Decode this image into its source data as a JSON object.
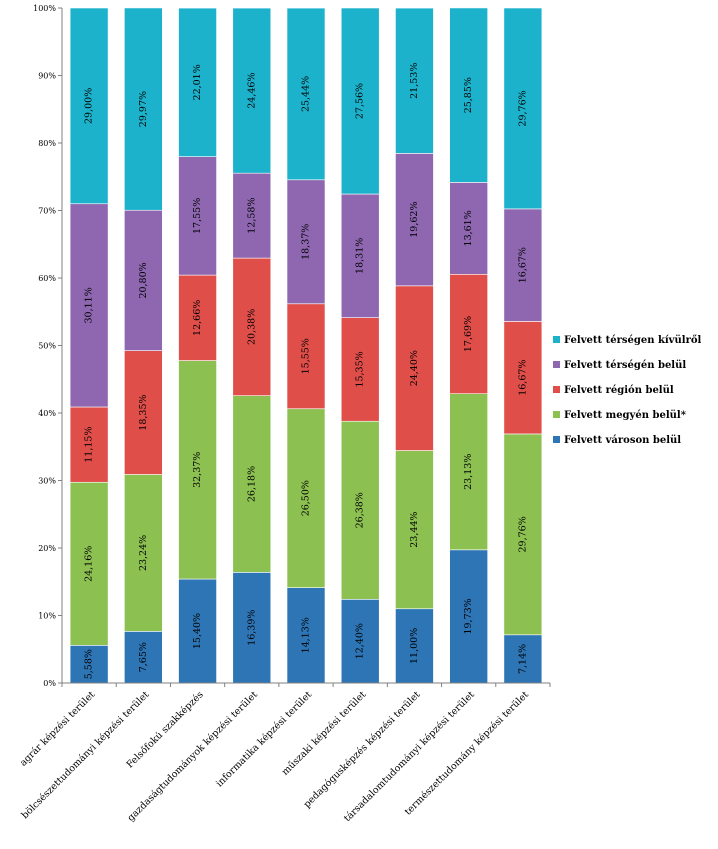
{
  "chart_data": {
    "type": "bar",
    "stacked": true,
    "orientation": "vertical",
    "categories": [
      "agrár képzési terület",
      "bölcsészettudományi képzési terület",
      "Felsőfokú szakképzés",
      "gazdaságtudományok képzési terület",
      "informatika képzési terület",
      "műszaki képzési terület",
      "pedagógusképzés képzési terület",
      "társadalomtudományi képzési terület",
      "természettudomány képzési terület"
    ],
    "series": [
      {
        "name": "Felvett városon belül",
        "color": "#2e75b6",
        "values": [
          5.58,
          7.65,
          15.4,
          16.39,
          14.13,
          12.4,
          11.0,
          19.73,
          7.14
        ],
        "labels": [
          "5,58%",
          "7,65%",
          "15,40%",
          "16,39%",
          "14,13%",
          "12,40%",
          "11,00%",
          "19,73%",
          "7,14%"
        ]
      },
      {
        "name": "Felvett megyén belül*",
        "color": "#8cc152",
        "values": [
          24.16,
          23.24,
          32.37,
          26.18,
          26.5,
          26.38,
          23.44,
          23.13,
          29.76
        ],
        "labels": [
          "24,16%",
          "23,24%",
          "32,37%",
          "26,18%",
          "26,50%",
          "26,38%",
          "23,44%",
          "23,13%",
          "29,76%"
        ]
      },
      {
        "name": "Felvett régión belül",
        "color": "#e04e4a",
        "values": [
          11.15,
          18.35,
          12.66,
          20.38,
          15.55,
          15.35,
          24.4,
          17.69,
          16.67
        ],
        "labels": [
          "11,15%",
          "18,35%",
          "12,66%",
          "20,38%",
          "15,55%",
          "15,35%",
          "24,40%",
          "17,69%",
          "16,67%"
        ]
      },
      {
        "name": "Felvett térségén belül",
        "color": "#8e67b0",
        "values": [
          30.11,
          20.8,
          17.55,
          12.58,
          18.37,
          18.31,
          19.62,
          13.61,
          16.67
        ],
        "labels": [
          "30,11%",
          "20,80%",
          "17,55%",
          "12,58%",
          "18,37%",
          "18,31%",
          "19,62%",
          "13,61%",
          "16,67%"
        ]
      },
      {
        "name": "Felvett térségen kívülről",
        "color": "#1db2cc",
        "values": [
          29.0,
          29.97,
          22.01,
          24.46,
          25.44,
          27.56,
          21.53,
          25.85,
          29.76
        ],
        "labels": [
          "29,00%",
          "29,97%",
          "22,01%",
          "24,46%",
          "25,44%",
          "27,56%",
          "21,53%",
          "25,85%",
          "29,76%"
        ]
      }
    ],
    "y_ticks": [
      "0%",
      "10%",
      "20%",
      "30%",
      "40%",
      "50%",
      "60%",
      "70%",
      "80%",
      "90%",
      "100%"
    ],
    "ylim": [
      0,
      100
    ],
    "grid": false,
    "legend_position": "right",
    "legend_order": [
      "Felvett térségen kívülről",
      "Felvett térségén belül",
      "Felvett régión belül",
      "Felvett megyén belül*",
      "Felvett városon belül"
    ]
  }
}
